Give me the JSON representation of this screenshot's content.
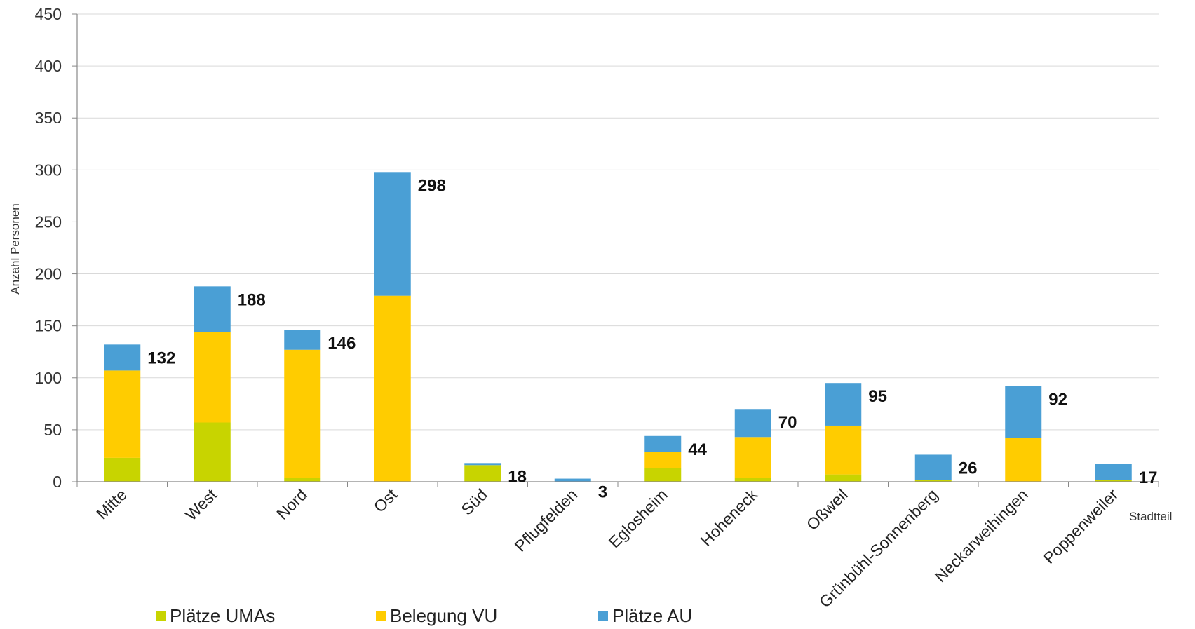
{
  "chart_data": {
    "type": "bar",
    "stacked": true,
    "xlabel": "Stadtteil",
    "ylabel": "Anzahl Personen",
    "ylim": [
      0,
      450
    ],
    "yticks": [
      0,
      50,
      100,
      150,
      200,
      250,
      300,
      350,
      400,
      450
    ],
    "grid": true,
    "legend_position": "bottom",
    "categories": [
      "Mitte",
      "West",
      "Nord",
      "Ost",
      "Süd",
      "Pflugfelden",
      "Eglosheim",
      "Hoheneck",
      "Oßweil",
      "Grünbühl-Sonnenberg",
      "Neckarweihingen",
      "Poppenweiler"
    ],
    "series": [
      {
        "name": "Plätze UMAs",
        "color": "#c8d400",
        "values": [
          23,
          57,
          4,
          0,
          16,
          0,
          13,
          4,
          7,
          2,
          0,
          2
        ]
      },
      {
        "name": "Belegung VU",
        "color": "#ffcc00",
        "values": [
          84,
          87,
          123,
          179,
          0,
          0,
          16,
          39,
          47,
          0,
          42,
          0
        ]
      },
      {
        "name": "Plätze AU",
        "color": "#4a9fd5",
        "values": [
          25,
          44,
          19,
          119,
          2,
          3,
          15,
          27,
          41,
          24,
          50,
          15
        ]
      }
    ],
    "totals": [
      132,
      188,
      146,
      298,
      18,
      3,
      44,
      70,
      95,
      26,
      92,
      17
    ]
  }
}
